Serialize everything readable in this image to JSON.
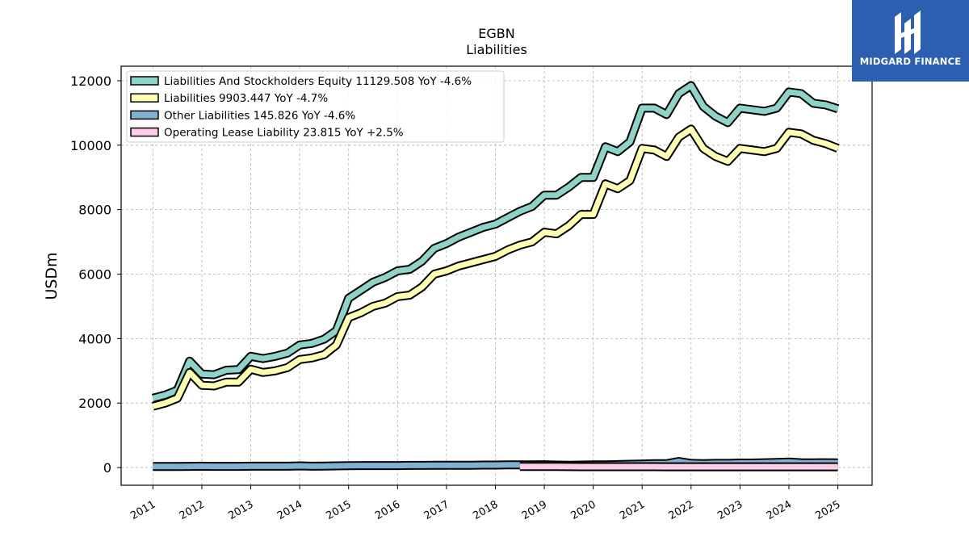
{
  "brand": {
    "name": "MIDGARD FINANCE",
    "color": "#2d5fb1"
  },
  "chart_data": {
    "type": "line",
    "title": "EGBN",
    "subtitle": "Liabilities",
    "ylabel": "USDm",
    "xlabel": "",
    "ylim": [
      -550,
      12450
    ],
    "xlim": [
      2010.35,
      2025.7
    ],
    "yticks": [
      0,
      2000,
      4000,
      6000,
      8000,
      10000,
      12000
    ],
    "xticks": [
      "2011",
      "2012",
      "2013",
      "2014",
      "2015",
      "2016",
      "2017",
      "2018",
      "2019",
      "2020",
      "2021",
      "2022",
      "2023",
      "2024",
      "2025"
    ],
    "grid": true,
    "legend_position": "upper-left",
    "series": [
      {
        "name": "Liabilities And Stockholders Equity",
        "legend_label": "Liabilities And Stockholders Equity  11129.508 YoY -4.6%",
        "color": "#8dd3c7",
        "x": [
          2011.0,
          2011.25,
          2011.5,
          2011.75,
          2012.0,
          2012.25,
          2012.5,
          2012.75,
          2013.0,
          2013.25,
          2013.5,
          2013.75,
          2014.0,
          2014.25,
          2014.5,
          2014.75,
          2015.0,
          2015.25,
          2015.5,
          2015.75,
          2016.0,
          2016.25,
          2016.5,
          2016.75,
          2017.0,
          2017.25,
          2017.5,
          2017.75,
          2018.0,
          2018.25,
          2018.5,
          2018.75,
          2019.0,
          2019.25,
          2019.5,
          2019.75,
          2020.0,
          2020.25,
          2020.5,
          2020.75,
          2021.0,
          2021.25,
          2021.5,
          2021.75,
          2022.0,
          2022.25,
          2022.5,
          2022.75,
          2023.0,
          2023.25,
          2023.5,
          2023.75,
          2024.0,
          2024.25,
          2024.5,
          2024.75,
          2025.0
        ],
        "values": [
          2150,
          2250,
          2400,
          3300,
          2900,
          2880,
          3020,
          3040,
          3450,
          3380,
          3450,
          3550,
          3800,
          3850,
          3980,
          4250,
          5250,
          5500,
          5750,
          5900,
          6100,
          6150,
          6400,
          6800,
          6950,
          7150,
          7300,
          7450,
          7550,
          7750,
          7950,
          8100,
          8450,
          8450,
          8700,
          9000,
          9000,
          9950,
          9800,
          10100,
          11150,
          11150,
          10950,
          11600,
          11850,
          11200,
          10900,
          10700,
          11150,
          11100,
          11050,
          11150,
          11650,
          11600,
          11300,
          11250,
          11130
        ]
      },
      {
        "name": "Liabilities",
        "legend_label": "Liabilities  9903.447 YoY -4.7%",
        "color": "#ffffb3",
        "x": [
          2011.0,
          2011.25,
          2011.5,
          2011.75,
          2012.0,
          2012.25,
          2012.5,
          2012.75,
          2013.0,
          2013.25,
          2013.5,
          2013.75,
          2014.0,
          2014.25,
          2014.5,
          2014.75,
          2015.0,
          2015.25,
          2015.5,
          2015.75,
          2016.0,
          2016.25,
          2016.5,
          2016.75,
          2017.0,
          2017.25,
          2017.5,
          2017.75,
          2018.0,
          2018.25,
          2018.5,
          2018.75,
          2019.0,
          2019.25,
          2019.5,
          2019.75,
          2020.0,
          2020.25,
          2020.5,
          2020.75,
          2021.0,
          2021.25,
          2021.5,
          2021.75,
          2022.0,
          2022.25,
          2022.5,
          2022.75,
          2023.0,
          2023.25,
          2023.5,
          2023.75,
          2024.0,
          2024.25,
          2024.5,
          2024.75,
          2025.0
        ],
        "values": [
          1900,
          2000,
          2150,
          2950,
          2550,
          2530,
          2650,
          2650,
          3050,
          2950,
          3000,
          3100,
          3350,
          3400,
          3500,
          3800,
          4650,
          4800,
          5000,
          5100,
          5300,
          5350,
          5600,
          6000,
          6100,
          6250,
          6350,
          6450,
          6550,
          6750,
          6900,
          7000,
          7300,
          7250,
          7500,
          7850,
          7850,
          8800,
          8650,
          8900,
          9900,
          9850,
          9650,
          10250,
          10500,
          9900,
          9650,
          9500,
          9900,
          9850,
          9800,
          9900,
          10400,
          10350,
          10150,
          10050,
          9903
        ]
      },
      {
        "name": "Other Liabilities",
        "legend_label": "Other Liabilities  145.826 YoY -4.6%",
        "color": "#80b1d3",
        "x": [
          2011.0,
          2011.25,
          2011.5,
          2011.75,
          2012.0,
          2012.25,
          2012.5,
          2012.75,
          2013.0,
          2013.25,
          2013.5,
          2013.75,
          2014.0,
          2014.25,
          2014.5,
          2014.75,
          2015.0,
          2015.25,
          2015.5,
          2015.75,
          2016.0,
          2016.25,
          2016.5,
          2016.75,
          2017.0,
          2017.25,
          2017.5,
          2017.75,
          2018.0,
          2018.25,
          2018.5,
          2018.75,
          2019.0,
          2019.25,
          2019.5,
          2019.75,
          2020.0,
          2020.25,
          2020.5,
          2020.75,
          2021.0,
          2021.25,
          2021.5,
          2021.75,
          2022.0,
          2022.25,
          2022.5,
          2022.75,
          2023.0,
          2023.25,
          2023.5,
          2023.75,
          2024.0,
          2024.25,
          2024.5,
          2024.75,
          2025.0
        ],
        "values": [
          30,
          30,
          30,
          35,
          40,
          35,
          35,
          35,
          40,
          40,
          40,
          40,
          50,
          40,
          45,
          50,
          55,
          60,
          60,
          60,
          60,
          65,
          65,
          70,
          70,
          70,
          70,
          75,
          75,
          80,
          80,
          80,
          85,
          75,
          70,
          75,
          80,
          80,
          90,
          100,
          110,
          120,
          120,
          190,
          130,
          120,
          130,
          130,
          140,
          140,
          150,
          160,
          170,
          150,
          145,
          150,
          146
        ]
      },
      {
        "name": "Operating Lease Liability",
        "legend_label": "Operating Lease Liability  23.815 YoY +2.5%",
        "color": "#fccde5",
        "x": [
          2018.5,
          2018.75,
          2019.0,
          2019.25,
          2019.5,
          2019.75,
          2020.0,
          2020.25,
          2020.5,
          2020.75,
          2021.0,
          2021.25,
          2021.5,
          2021.75,
          2022.0,
          2022.25,
          2022.5,
          2022.75,
          2023.0,
          2023.25,
          2023.5,
          2023.75,
          2024.0,
          2024.25,
          2024.5,
          2024.75,
          2025.0
        ],
        "values": [
          30,
          30,
          30,
          30,
          28,
          27,
          27,
          26,
          26,
          25,
          25,
          25,
          24,
          24,
          24,
          24,
          23,
          23,
          23,
          23,
          23,
          23,
          23,
          23,
          24,
          24,
          24
        ]
      }
    ]
  }
}
